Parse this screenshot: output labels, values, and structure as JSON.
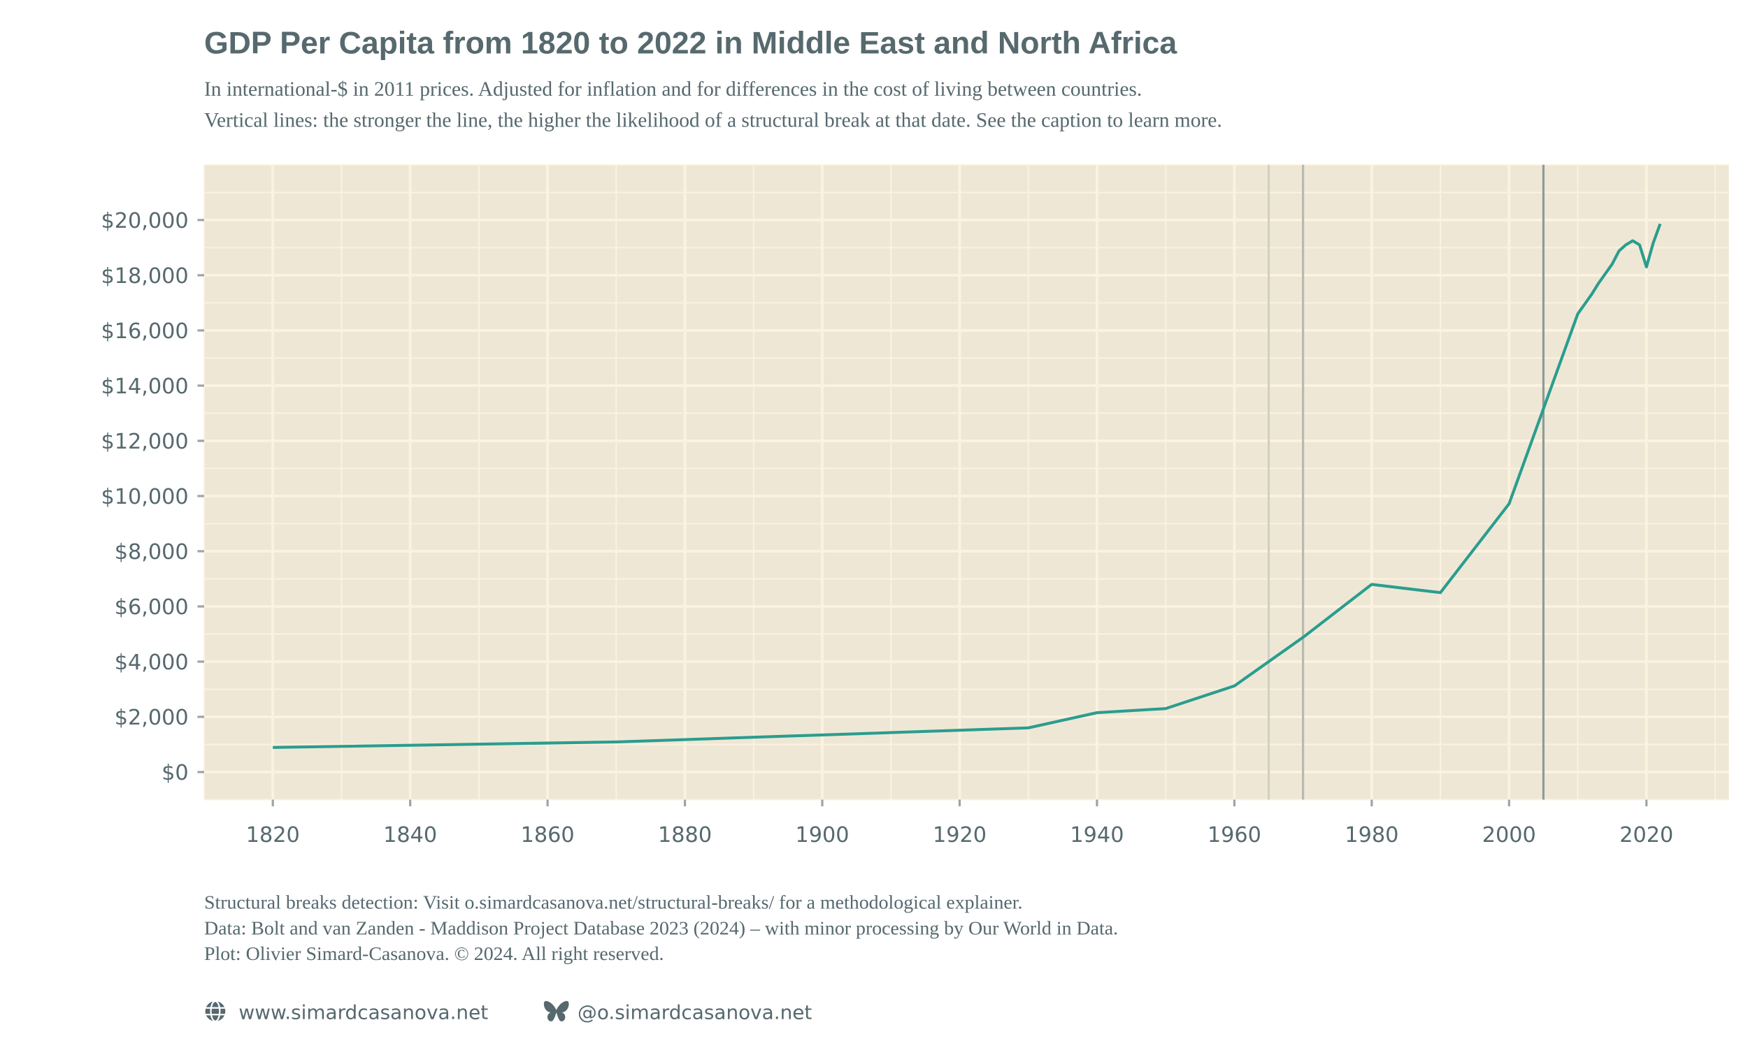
{
  "title": "GDP Per Capita from 1820 to 2022 in Middle East and North Africa",
  "subtitle": [
    "In international-$ in 2011 prices. Adjusted for inflation and for differences in the cost of living between countries.",
    "Vertical lines: the stronger the line, the higher the likelihood of a structural break at that date. See the caption to learn more."
  ],
  "caption": [
    "Structural breaks detection: Visit o.simardcasanova.net/structural-breaks/ for a methodological explainer.",
    "Data: Bolt and van Zanden - Maddison Project Database 2023 (2024) – with minor processing by Our World in Data.",
    "Plot: Olivier Simard-Casanova. © 2024. All right reserved."
  ],
  "footer": {
    "website_icon": "globe-icon",
    "website": "www.simardcasanova.net",
    "social_icon": "butterfly-icon",
    "social": "@o.simardcasanova.net"
  },
  "colors": {
    "panel": "#efe7d5",
    "grid": "#fbf3df",
    "line": "#2a9d8f",
    "text": "#56696e",
    "break_weak": "#d2d0c4",
    "break_medium": "#b7bab2",
    "break_strong": "#8c9b99"
  },
  "chart_data": {
    "type": "line",
    "title": "GDP Per Capita from 1820 to 2022 in Middle East and North Africa",
    "xlim": [
      1810,
      2032
    ],
    "ylim": [
      -1000,
      22000
    ],
    "x_ticks": [
      1820,
      1840,
      1860,
      1880,
      1900,
      1920,
      1940,
      1960,
      1980,
      2000,
      2020
    ],
    "x_tick_labels": [
      "1820",
      "1840",
      "1860",
      "1880",
      "1900",
      "1920",
      "1940",
      "1960",
      "1980",
      "2000",
      "2020"
    ],
    "y_ticks": [
      0,
      2000,
      4000,
      6000,
      8000,
      10000,
      12000,
      14000,
      16000,
      18000,
      20000
    ],
    "y_tick_labels": [
      "$0",
      "$2,000",
      "$4,000",
      "$6,000",
      "$8,000",
      "$10,000",
      "$12,000",
      "$14,000",
      "$16,000",
      "$18,000",
      "$20,000"
    ],
    "grid": true,
    "x": [
      1820,
      1870,
      1930,
      1940,
      1950,
      1960,
      1970,
      1980,
      1990,
      2000,
      2010,
      2011,
      2012,
      2013,
      2014,
      2015,
      2016,
      2017,
      2018,
      2019,
      2020,
      2021,
      2022
    ],
    "values": [
      890,
      1090,
      1600,
      2150,
      2300,
      3120,
      4880,
      6800,
      6500,
      9720,
      16600,
      16950,
      17300,
      17700,
      18050,
      18400,
      18880,
      19100,
      19250,
      19100,
      18300,
      19180,
      19860
    ],
    "structural_breaks": [
      {
        "year": 1965,
        "strength": "weak"
      },
      {
        "year": 1970,
        "strength": "medium"
      },
      {
        "year": 2005,
        "strength": "strong"
      }
    ]
  }
}
